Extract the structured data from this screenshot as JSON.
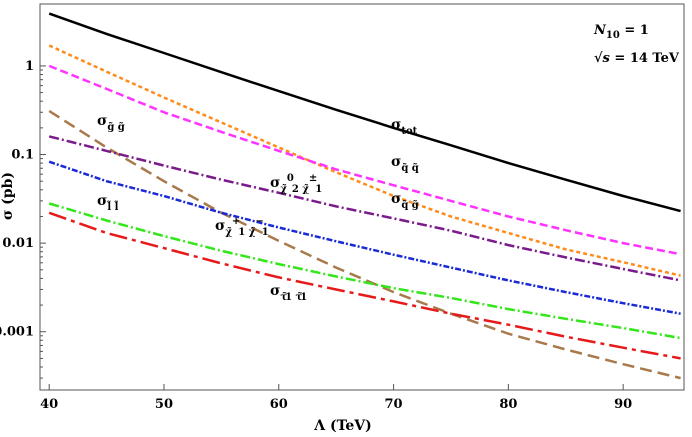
{
  "chart_data": {
    "type": "line",
    "title": "",
    "xlabel": "Λ (TeV)",
    "ylabel": "σ (pb)",
    "xlim": [
      39.2,
      95.3
    ],
    "ylim": [
      0.00022,
      5.0
    ],
    "y_scale": "log",
    "grid": false,
    "x_ticks": [
      40,
      50,
      60,
      70,
      80,
      90
    ],
    "x_tick_labels": [
      "40",
      "50",
      "60",
      "70",
      "80",
      "90"
    ],
    "y_ticks": [
      1,
      0.1,
      0.01,
      0.001
    ],
    "y_tick_labels": [
      "1",
      "0.1",
      "0.01",
      "0.001"
    ],
    "annotations": [
      {
        "id": "n10",
        "main": "N",
        "sub": "10",
        "rest": " = 1"
      },
      {
        "id": "sqrts",
        "main": "√s",
        "rest": " = 14 TeV"
      }
    ],
    "series": [
      {
        "key": "tot",
        "color": "#000000",
        "dash": "",
        "x": [
          40,
          45,
          50,
          55,
          60,
          65,
          70,
          75,
          80,
          85,
          90,
          95
        ],
        "y": [
          3.9,
          2.3,
          1.4,
          0.85,
          0.52,
          0.32,
          0.2,
          0.127,
          0.08,
          0.052,
          0.034,
          0.023
        ]
      },
      {
        "key": "sqsq",
        "color": "#ff8c1a",
        "dash": "4,3",
        "x": [
          40,
          45,
          50,
          55,
          60,
          65,
          70,
          75,
          80,
          85,
          90,
          95
        ],
        "y": [
          1.7,
          0.86,
          0.44,
          0.23,
          0.12,
          0.063,
          0.034,
          0.02,
          0.013,
          0.0085,
          0.0061,
          0.0043
        ]
      },
      {
        "key": "sqsg",
        "color": "#ff33ff",
        "dash": "8,4",
        "x": [
          40,
          45,
          50,
          55,
          60,
          65,
          70,
          75,
          80,
          85,
          90,
          95
        ],
        "y": [
          1.0,
          0.55,
          0.3,
          0.18,
          0.11,
          0.068,
          0.045,
          0.03,
          0.02,
          0.014,
          0.01,
          0.0075
        ]
      },
      {
        "key": "sgsg",
        "color": "#a87a4b",
        "dash": "12,6",
        "x": [
          40,
          45,
          50,
          55,
          60,
          65,
          70,
          75,
          80,
          85,
          90,
          95
        ],
        "y": [
          0.31,
          0.12,
          0.05,
          0.022,
          0.0106,
          0.0053,
          0.0028,
          0.0016,
          0.00095,
          0.00063,
          0.00043,
          0.0003
        ]
      },
      {
        "key": "chi02chipm",
        "color": "#7a1a8c",
        "dash": "10,3,2,3",
        "x": [
          40,
          45,
          50,
          55,
          60,
          65,
          70,
          75,
          80,
          85,
          90,
          95
        ],
        "y": [
          0.16,
          0.11,
          0.075,
          0.052,
          0.037,
          0.026,
          0.019,
          0.0138,
          0.0095,
          0.0069,
          0.0051,
          0.0038
        ]
      },
      {
        "key": "chipchim",
        "color": "#1a2ad6",
        "dash": "6,2,2,2",
        "x": [
          40,
          45,
          50,
          55,
          60,
          65,
          70,
          75,
          80,
          85,
          90,
          95
        ],
        "y": [
          0.083,
          0.05,
          0.034,
          0.022,
          0.015,
          0.0105,
          0.0074,
          0.0053,
          0.0038,
          0.0028,
          0.0021,
          0.0016
        ]
      },
      {
        "key": "slsl",
        "color": "#33e61a",
        "dash": "10,3,2,3",
        "x": [
          40,
          45,
          50,
          55,
          60,
          65,
          70,
          75,
          80,
          85,
          90,
          95
        ],
        "y": [
          0.028,
          0.018,
          0.012,
          0.0082,
          0.0058,
          0.0042,
          0.0031,
          0.0024,
          0.0018,
          0.0014,
          0.0011,
          0.00085
        ]
      },
      {
        "key": "stausta",
        "color": "#e61a1a",
        "dash": "18,5,4,5",
        "x": [
          40,
          45,
          50,
          55,
          60,
          65,
          70,
          75,
          80,
          85,
          90,
          95
        ],
        "y": [
          0.022,
          0.013,
          0.0088,
          0.0059,
          0.0041,
          0.003,
          0.0022,
          0.0016,
          0.0012,
          0.00088,
          0.00066,
          0.0005
        ]
      }
    ],
    "labels": [
      {
        "key": "tot",
        "parts": [
          {
            "t": "σ"
          },
          {
            "t": "tot",
            "s": "sub"
          }
        ]
      },
      {
        "key": "sqsq",
        "parts": [
          {
            "t": "σ"
          },
          {
            "t": "q̃ q̃",
            "s": "sub"
          }
        ]
      },
      {
        "key": "sqsg",
        "parts": [
          {
            "t": "σ"
          },
          {
            "t": "q̃ g̃",
            "s": "sub"
          }
        ]
      },
      {
        "key": "sgsg",
        "parts": [
          {
            "t": "σ"
          },
          {
            "t": "g̃ g̃",
            "s": "sub"
          }
        ]
      },
      {
        "key": "chi02chipm",
        "parts": [
          {
            "t": "σ"
          },
          {
            "t": "χ̃",
            "s": "sub"
          },
          {
            "t": "0",
            "s": "sup"
          },
          {
            "t": "2",
            "s": "sub2"
          },
          {
            "t": " χ̃",
            "s": "sub"
          },
          {
            "t": "±",
            "s": "sup"
          },
          {
            "t": "1",
            "s": "sub2"
          }
        ]
      },
      {
        "key": "chipchim",
        "parts": [
          {
            "t": "σ"
          },
          {
            "t": "χ̃",
            "s": "sub"
          },
          {
            "t": "+",
            "s": "sup"
          },
          {
            "t": "1",
            "s": "sub2"
          },
          {
            "t": " χ̃",
            "s": "sub"
          },
          {
            "t": "−",
            "s": "sup"
          },
          {
            "t": "1",
            "s": "sub2"
          }
        ]
      },
      {
        "key": "slsl",
        "parts": [
          {
            "t": "σ"
          },
          {
            "t": "l̃ l̃",
            "s": "sub"
          }
        ]
      },
      {
        "key": "stausta",
        "parts": [
          {
            "t": "σ"
          },
          {
            "t": "τ̃",
            "s": "sub"
          },
          {
            "t": "1",
            "s": "sub2"
          },
          {
            "t": " τ̃",
            "s": "sub"
          },
          {
            "t": "1",
            "s": "sub2"
          }
        ]
      }
    ]
  }
}
